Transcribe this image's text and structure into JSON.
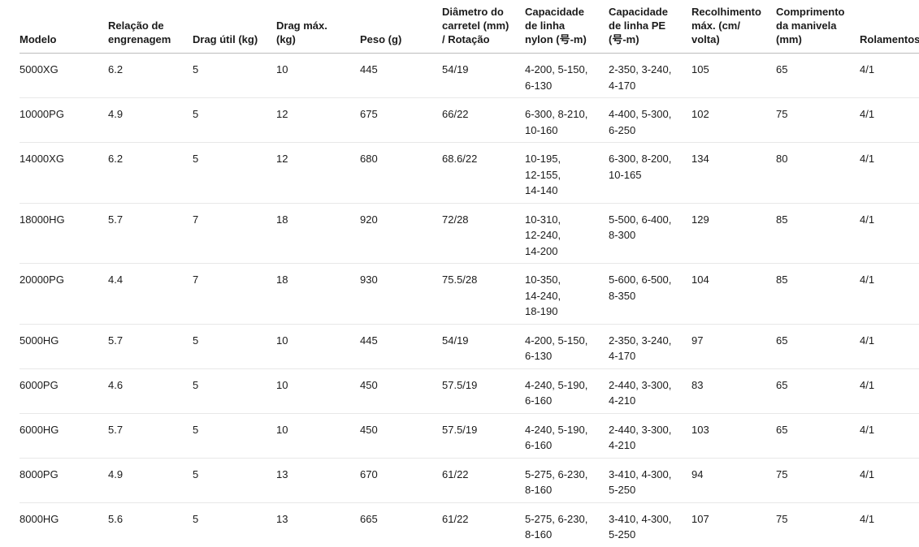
{
  "table": {
    "columns": [
      {
        "id": "modelo",
        "label": "Modelo"
      },
      {
        "id": "gear-ratio",
        "label": "Relação de\nengrenagem"
      },
      {
        "id": "drag-util",
        "label": "Drag útil (kg)"
      },
      {
        "id": "drag-max",
        "label": "Drag máx.\n(kg)"
      },
      {
        "id": "peso",
        "label": "Peso (g)"
      },
      {
        "id": "diametro-carretel",
        "label": "Diâmetro do\ncarretel (mm)\n/ Rotação"
      },
      {
        "id": "capacidade-nylon",
        "label": "Capacidade\nde linha\nnylon (号-m)"
      },
      {
        "id": "capacidade-pe",
        "label": "Capacidade\nde linha PE\n(号-m)"
      },
      {
        "id": "recolhimento-max",
        "label": "Recolhimento\nmáx. (cm/\nvolta)"
      },
      {
        "id": "comprimento-manivela",
        "label": "Comprimento\nda manivela\n(mm)"
      },
      {
        "id": "rolamentos",
        "label": "Rolamentos"
      }
    ],
    "rows": [
      {
        "cells": [
          "5000XG",
          "6.2",
          "5",
          "10",
          "445",
          "54/19",
          "4-200, 5-150,\n6-130",
          "2-350, 3-240,\n4-170",
          "105",
          "65",
          "4/1"
        ]
      },
      {
        "cells": [
          "10000PG",
          "4.9",
          "5",
          "12",
          "675",
          "66/22",
          "6-300, 8-210,\n10-160",
          "4-400, 5-300,\n6-250",
          "102",
          "75",
          "4/1"
        ]
      },
      {
        "cells": [
          "14000XG",
          "6.2",
          "5",
          "12",
          "680",
          "68.6/22",
          "10-195,\n12-155,\n14-140",
          "6-300, 8-200,\n10-165",
          "134",
          "80",
          "4/1"
        ]
      },
      {
        "cells": [
          "18000HG",
          "5.7",
          "7",
          "18",
          "920",
          "72/28",
          "10-310,\n12-240,\n14-200",
          "5-500, 6-400,\n8-300",
          "129",
          "85",
          "4/1"
        ]
      },
      {
        "cells": [
          "20000PG",
          "4.4",
          "7",
          "18",
          "930",
          "75.5/28",
          "10-350,\n14-240,\n18-190",
          "5-600, 6-500,\n8-350",
          "104",
          "85",
          "4/1"
        ]
      },
      {
        "cells": [
          "5000HG",
          "5.7",
          "5",
          "10",
          "445",
          "54/19",
          "4-200, 5-150,\n6-130",
          "2-350, 3-240,\n4-170",
          "97",
          "65",
          "4/1"
        ]
      },
      {
        "cells": [
          "6000PG",
          "4.6",
          "5",
          "10",
          "450",
          "57.5/19",
          "4-240, 5-190,\n6-160",
          "2-440, 3-300,\n4-210",
          "83",
          "65",
          "4/1"
        ]
      },
      {
        "cells": [
          "6000HG",
          "5.7",
          "5",
          "10",
          "450",
          "57.5/19",
          "4-240, 5-190,\n6-160",
          "2-440, 3-300,\n4-210",
          "103",
          "65",
          "4/1"
        ]
      },
      {
        "cells": [
          "8000PG",
          "4.9",
          "5",
          "13",
          "670",
          "61/22",
          "5-275, 6-230,\n8-160",
          "3-410, 4-300,\n5-250",
          "94",
          "75",
          "4/1"
        ]
      },
      {
        "cells": [
          "8000HG",
          "5.6",
          "5",
          "13",
          "665",
          "61/22",
          "5-275, 6-230,\n8-160",
          "3-410, 4-300,\n5-250",
          "107",
          "75",
          "4/1"
        ]
      }
    ]
  }
}
